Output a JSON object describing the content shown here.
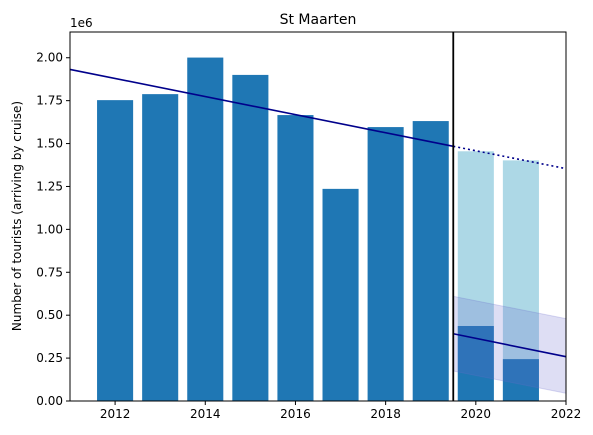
{
  "chart_data": {
    "type": "bar",
    "title": "St Maarten",
    "xlabel": "",
    "ylabel": "Number of tourists (arriving by cruise)",
    "y_offset_label": "1e6",
    "xlim": [
      2011,
      2022
    ],
    "ylim": [
      0,
      2150000
    ],
    "x_ticks": [
      2012,
      2014,
      2016,
      2018,
      2020,
      2022
    ],
    "y_ticks": [
      0,
      250000,
      500000,
      750000,
      1000000,
      1250000,
      1500000,
      1750000,
      2000000
    ],
    "y_tick_labels": [
      "0.00",
      "0.25",
      "0.50",
      "0.75",
      "1.00",
      "1.25",
      "1.50",
      "1.75",
      "2.00"
    ],
    "grid": false,
    "legend": "none",
    "cutoff_x": 2019.5,
    "series": [
      {
        "kind": "actual",
        "color": "#1f77b4",
        "points": [
          {
            "x": 2012,
            "y": 1753000
          },
          {
            "x": 2013,
            "y": 1788000
          },
          {
            "x": 2014,
            "y": 2001000
          },
          {
            "x": 2015,
            "y": 1900000
          },
          {
            "x": 2016,
            "y": 1666000
          },
          {
            "x": 2017,
            "y": 1236000
          },
          {
            "x": 2018,
            "y": 1596000
          },
          {
            "x": 2019,
            "y": 1631000
          },
          {
            "x": 2020,
            "y": 437000
          },
          {
            "x": 2021,
            "y": 244000
          }
        ]
      },
      {
        "kind": "expected",
        "color": "#add8e6",
        "points": [
          {
            "x": 2020,
            "y": 1455000
          },
          {
            "x": 2021,
            "y": 1402000
          }
        ]
      }
    ],
    "trend_pre": {
      "color": "#00008b",
      "style": "solid",
      "x": [
        2011,
        2019.5
      ],
      "y": [
        1932000,
        1484000
      ]
    },
    "trend_pre_extension": {
      "color": "#00008b",
      "style": "dotted",
      "x": [
        2019.5,
        2022
      ],
      "y": [
        1484000,
        1354000
      ]
    },
    "trend_post": {
      "color": "#00008b",
      "style": "solid",
      "x": [
        2019.5,
        2022
      ],
      "y": [
        392000,
        258000
      ]
    },
    "trend_post_band": {
      "color": "#6a6acd",
      "x": [
        2019.5,
        2022
      ],
      "upper": [
        610000,
        480000
      ],
      "lower": [
        175000,
        45000
      ]
    },
    "cutoff_line_color": "#000000"
  }
}
